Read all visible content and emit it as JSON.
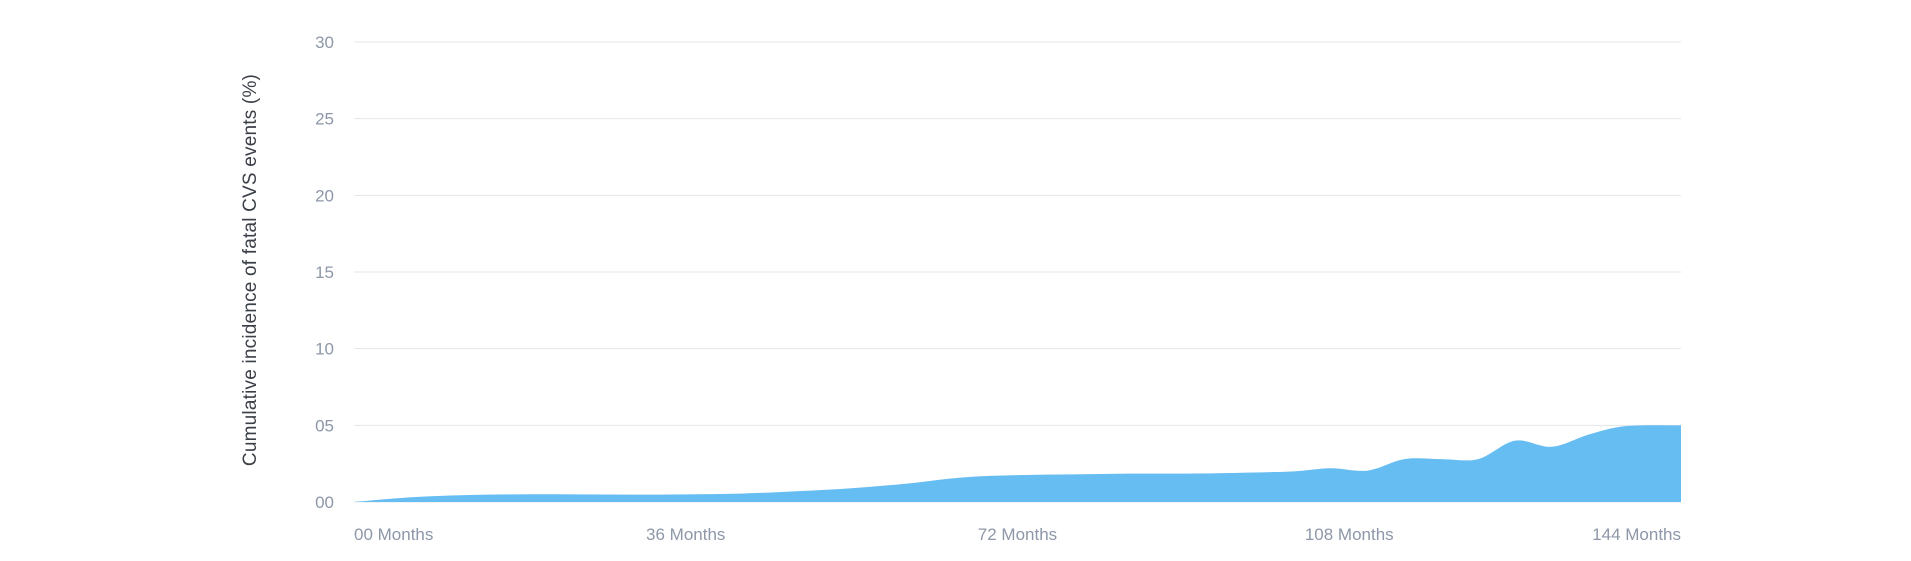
{
  "chart_data": {
    "type": "area",
    "title": "",
    "xlabel": "",
    "ylabel": "Cumulative incidence of fatal CVS events (%)",
    "x_ticks": [
      "00 Months",
      "36 Months",
      "72 Months",
      "108 Months",
      "144 Months"
    ],
    "x_tick_values": [
      0,
      36,
      72,
      108,
      144
    ],
    "y_ticks": [
      "00",
      "05",
      "10",
      "15",
      "20",
      "25",
      "30"
    ],
    "y_tick_values": [
      0,
      5,
      10,
      15,
      20,
      25,
      30
    ],
    "xlim": [
      0,
      144
    ],
    "ylim": [
      0,
      30
    ],
    "grid": true,
    "fill_color": "#66bdf2",
    "series": [
      {
        "x": [
          0,
          6,
          12,
          18,
          24,
          30,
          36,
          42,
          48,
          54,
          60,
          66,
          72,
          78,
          84,
          90,
          96,
          102,
          106,
          110,
          114,
          118,
          122,
          126,
          130,
          134,
          138,
          144
        ],
        "y": [
          0,
          0.3,
          0.45,
          0.5,
          0.5,
          0.48,
          0.5,
          0.55,
          0.7,
          0.9,
          1.2,
          1.6,
          1.75,
          1.8,
          1.85,
          1.85,
          1.9,
          2.0,
          2.2,
          2.05,
          2.8,
          2.8,
          2.8,
          4.0,
          3.6,
          4.4,
          4.95,
          5.0
        ]
      }
    ]
  }
}
